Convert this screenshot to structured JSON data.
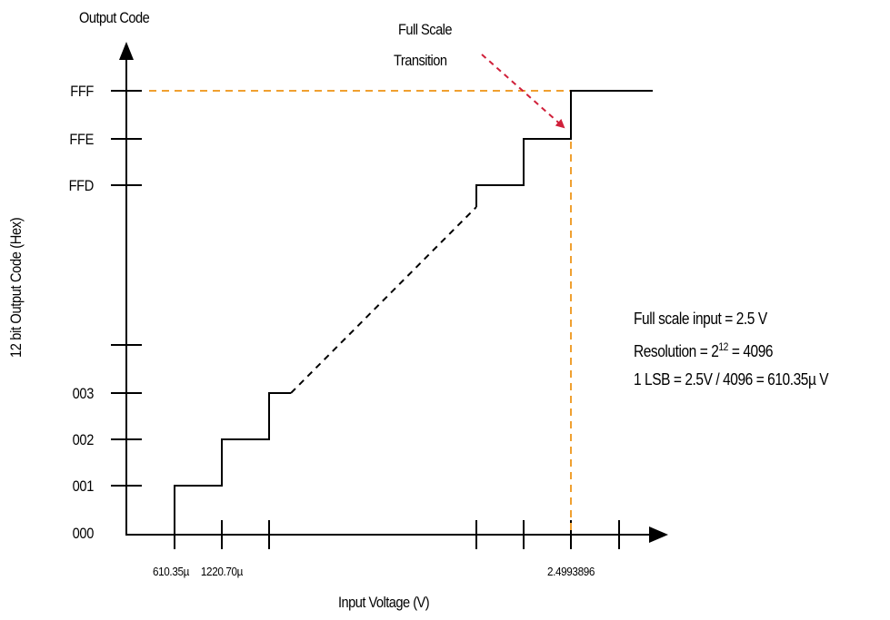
{
  "axes": {
    "y_title": "Output Code",
    "y_label": "12 bit Output Code (Hex)",
    "x_label": "Input Voltage (V)"
  },
  "y_ticks": [
    "FFF",
    "FFE",
    "FFD",
    "003",
    "002",
    "001",
    "000"
  ],
  "x_ticks": [
    "610.35µ",
    "1220.70µ",
    "2.4993896"
  ],
  "callout": {
    "line1": "Full Scale",
    "line2": "Transition"
  },
  "notes": {
    "line1": "Full scale input = 2.5 V",
    "line2_prefix": "Resolution = 2",
    "line2_exp": "12",
    "line2_suffix": " = 4096",
    "line3": "1 LSB = 2.5V / 4096 = 610.35µ V"
  },
  "colors": {
    "axis": "#000000",
    "guide": "#f0a030",
    "arrow": "#d0203a"
  }
}
